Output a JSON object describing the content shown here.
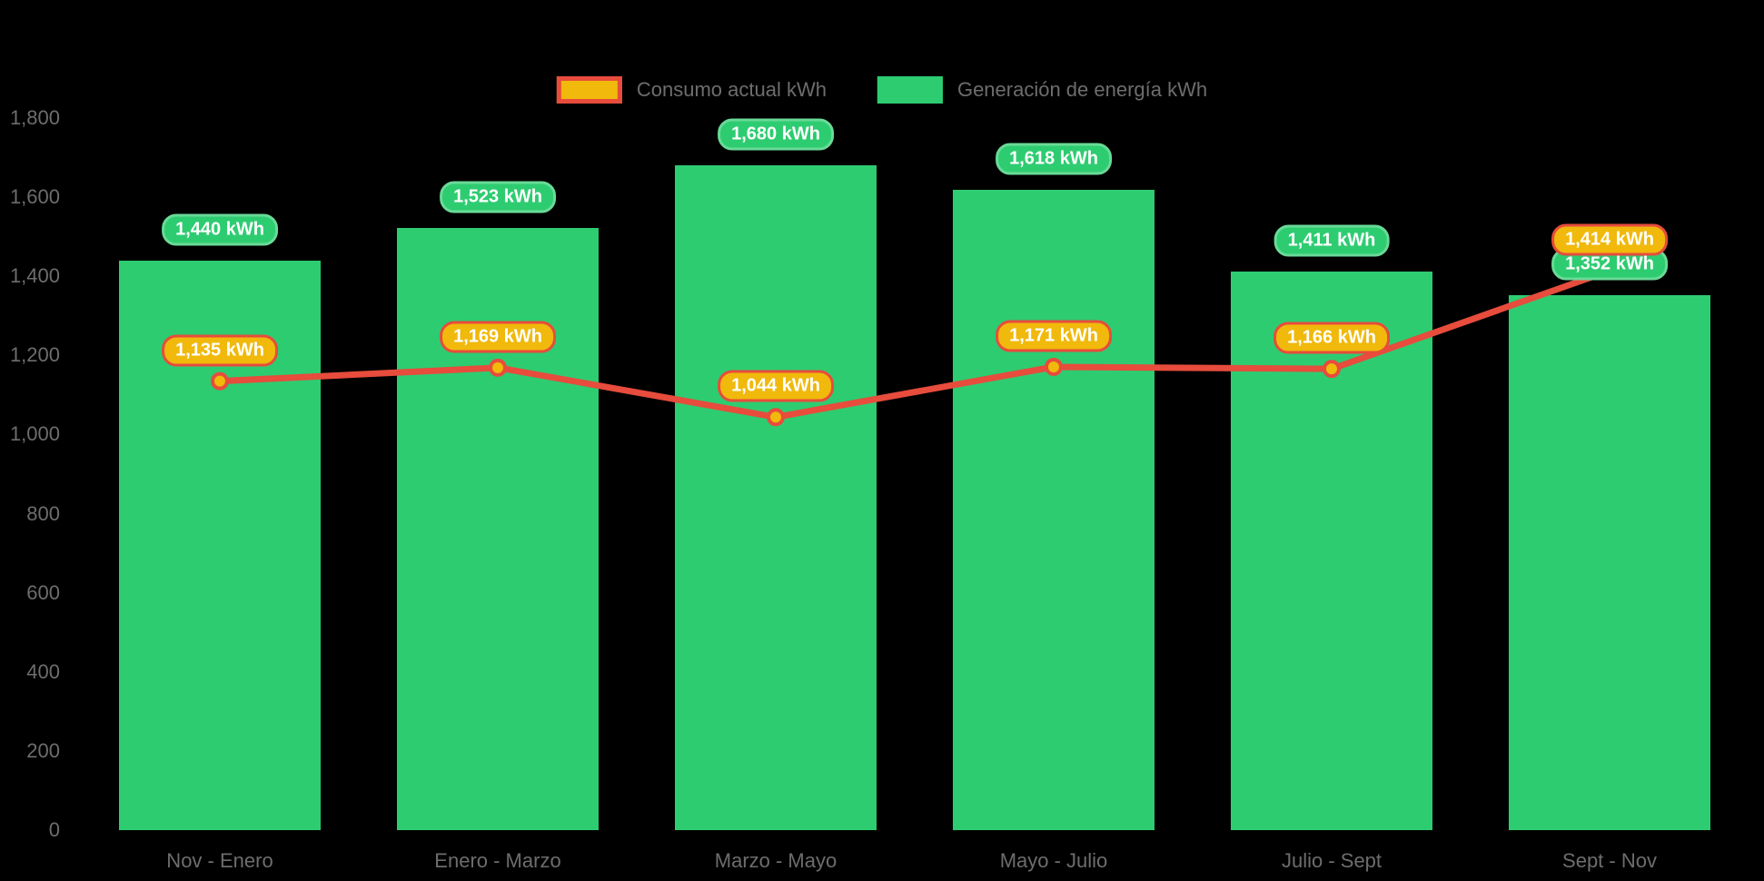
{
  "legend": {
    "items": [
      {
        "label": "Consumo actual kWh",
        "swatch_fill": "#f0b90b",
        "swatch_border": "#e74c3c"
      },
      {
        "label": "Generación de energía kWh",
        "swatch_fill": "#2ecc71",
        "swatch_border": "#2ecc71"
      }
    ]
  },
  "chart_data": {
    "type": "combo-bar-line",
    "categories": [
      "Nov - Enero",
      "Enero - Marzo",
      "Marzo - Mayo",
      "Mayo - Julio",
      "Julio - Sept",
      "Sept - Nov"
    ],
    "series": [
      {
        "name": "Consumo actual kWh",
        "type": "line",
        "line_color": "#e74c3c",
        "marker_fill": "#f0b90b",
        "marker_border": "#e74c3c",
        "values": [
          1135,
          1169,
          1044,
          1171,
          1166,
          1414
        ],
        "labels": [
          "1,135 kWh",
          "1,169 kWh",
          "1,044 kWh",
          "1,171 kWh",
          "1,166 kWh",
          "1,414 kWh"
        ]
      },
      {
        "name": "Generación de energía kWh",
        "type": "bar",
        "color": "#2ecc71",
        "values": [
          1440,
          1523,
          1680,
          1618,
          1411,
          1352
        ],
        "labels": [
          "1,440 kWh",
          "1,523 kWh",
          "1,680 kWh",
          "1,618 kWh",
          "1,411 kWh",
          "1,352 kWh"
        ]
      }
    ],
    "y_axis": {
      "min": 0,
      "max": 1800,
      "tick_values": [
        0,
        200,
        400,
        600,
        800,
        1000,
        1200,
        1400,
        1600,
        1800
      ],
      "tick_labels": [
        "0",
        "200",
        "400",
        "600",
        "800",
        "1,000",
        "1,200",
        "1,400",
        "1,600",
        "1,800"
      ],
      "grid": false
    },
    "legend_position": "top-center",
    "background": "#000000",
    "axis_text_color": "#6d6d6d"
  }
}
